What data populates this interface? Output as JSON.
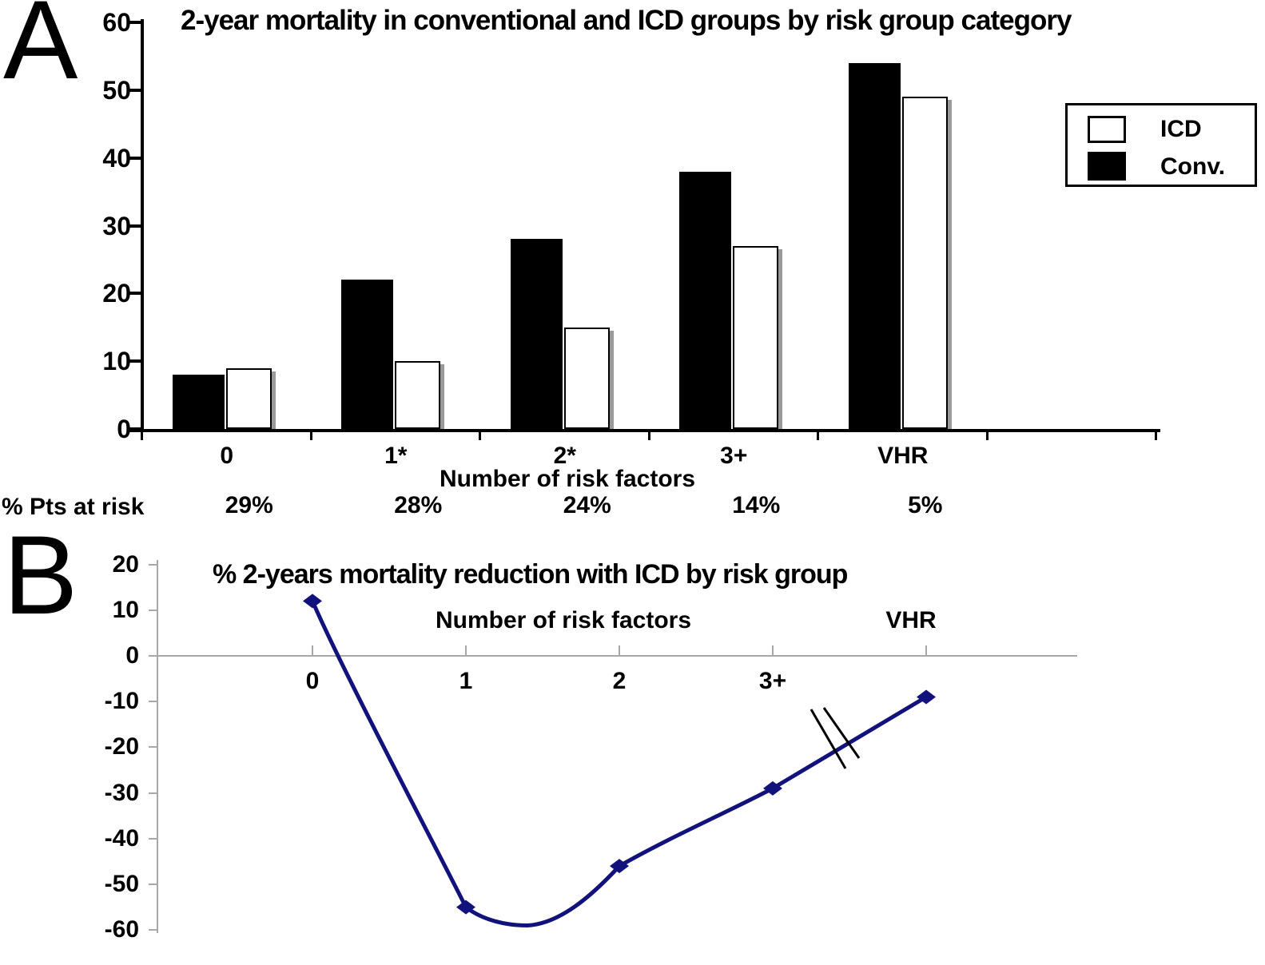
{
  "panel_a": {
    "label": "A",
    "title": "2-year mortality in conventional and ICD groups by risk group category",
    "xlabel": "Number of risk factors",
    "pts_at_risk_label": "% Pts at risk",
    "pts_at_risk_values": [
      "29%",
      "28%",
      "24%",
      "14%",
      "5%"
    ],
    "legend": [
      {
        "label": "ICD",
        "swatch_color": "#ffffff"
      },
      {
        "label": "Conv.",
        "swatch_color": "#000000"
      }
    ]
  },
  "panel_b": {
    "label": "B",
    "title": "% 2-years mortality reduction with ICD by risk group",
    "xlabel": "Number of risk factors",
    "vhr_label": "VHR"
  },
  "chart_data": [
    {
      "type": "bar",
      "title": "2-year mortality in conventional and ICD groups by risk group category",
      "categories": [
        "0",
        "1*",
        "2*",
        "3+",
        "VHR"
      ],
      "series": [
        {
          "name": "Conv.",
          "color": "#000000",
          "values": [
            8,
            22,
            28,
            38,
            54
          ]
        },
        {
          "name": "ICD",
          "color": "#ffffff",
          "values": [
            9,
            10,
            15,
            27,
            49
          ]
        }
      ],
      "xlabel": "Number of risk factors",
      "ylabel": "",
      "ylim": [
        0,
        60
      ],
      "ytick_step": 10,
      "grid": false,
      "legend_position": "right",
      "pts_at_risk": {
        "label": "% Pts at risk",
        "values": [
          "29%",
          "28%",
          "24%",
          "14%",
          "5%"
        ]
      }
    },
    {
      "type": "line",
      "title": "% 2-years mortality reduction with ICD by risk group",
      "categories": [
        "0",
        "1",
        "2",
        "3+",
        "VHR"
      ],
      "values": [
        12,
        -55,
        -46,
        -29,
        -9
      ],
      "curve_dip_between_1_and_2": -59,
      "axis_break_between": [
        "3+",
        "VHR"
      ],
      "xlabel": "Number of risk factors",
      "ylim": [
        -60,
        20
      ],
      "ytick_step": 10,
      "grid": false,
      "line_color": "#12127c",
      "marker": "diamond",
      "axis_color": "#a8a8a8"
    }
  ]
}
